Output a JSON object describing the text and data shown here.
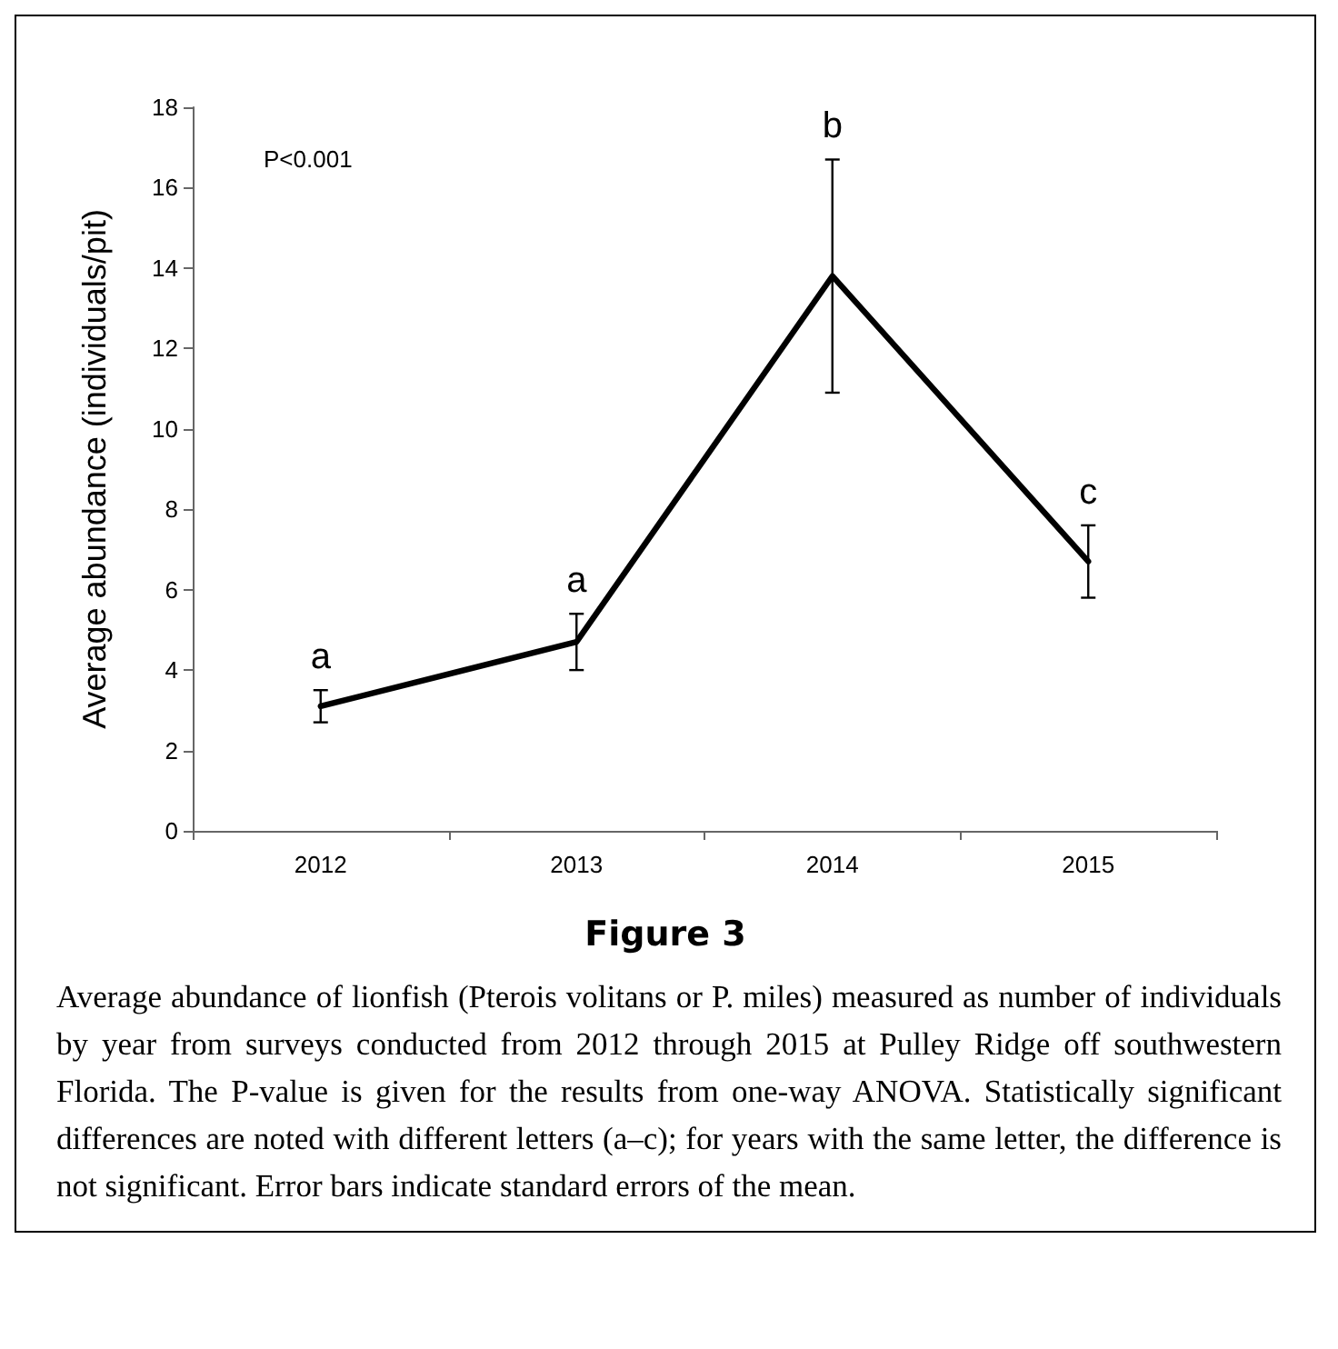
{
  "chart_data": {
    "type": "line",
    "title": "Figure 3",
    "ylabel": "Average abundance (individuals/pit)",
    "categories": [
      "2012",
      "2013",
      "2014",
      "2015"
    ],
    "series": [
      {
        "color": "#000000",
        "values": [
          3.1,
          4.7,
          13.8,
          6.7
        ],
        "errors": [
          [
            2.7,
            3.5
          ],
          [
            4.0,
            5.4
          ],
          [
            10.9,
            16.7
          ],
          [
            5.8,
            7.6
          ]
        ]
      }
    ],
    "ylim": [
      0,
      18
    ],
    "yticks": [
      0,
      2,
      4,
      6,
      8,
      10,
      12,
      14,
      16,
      18
    ],
    "grid": false,
    "marker": "none",
    "line_style": "solid",
    "annotations": [
      "a",
      "a",
      "b",
      "c",
      "P<0.001",
      "Average abundance of lionfish (Pterois volitans or P. miles) measured as number of individuals by year from surveys conducted from 2012 through 2015 at Pulley Ridge off southwestern Florida. The P-value is given for the results from one-way ANOVA. Statistically significant differences are noted with different letters (a–c); for years with the same letter, the difference is not significant. Error bars indicate standard errors of the mean."
    ]
  }
}
